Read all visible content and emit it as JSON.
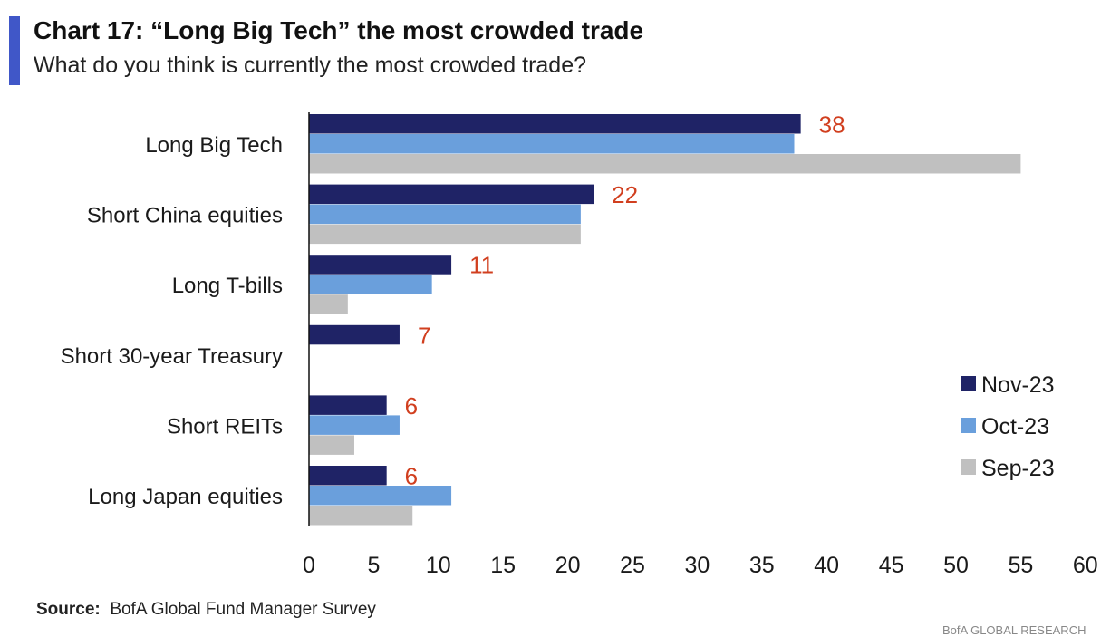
{
  "title": "Chart 17: “Long Big Tech” the most crowded trade",
  "subtitle": "What do you think is currently the most crowded trade?",
  "source_label": "Source:",
  "source_text": "BofA Global Fund Manager Survey",
  "footer_mark": "BofA GLOBAL RESEARCH",
  "colors": {
    "accent": "#4057c8",
    "nov": "#1f2366",
    "oct": "#6a9fdc",
    "sep": "#c0c0c0",
    "value_label": "#d13f1f",
    "axis": "#111111"
  },
  "chart_data": {
    "type": "bar",
    "orientation": "horizontal",
    "title": "Chart 17: “Long Big Tech” the most crowded trade",
    "subtitle": "What do you think is currently the most crowded trade?",
    "categories": [
      "Long Big Tech",
      "Short China equities",
      "Long T-bills",
      "Short 30-year Treasury",
      "Short REITs",
      "Long Japan equities"
    ],
    "series": [
      {
        "name": "Nov-23",
        "values": [
          38,
          22,
          11,
          7,
          6,
          6
        ]
      },
      {
        "name": "Oct-23",
        "values": [
          37.5,
          21,
          9.5,
          0,
          7,
          11
        ]
      },
      {
        "name": "Sep-23",
        "values": [
          55,
          21,
          3,
          0,
          3.5,
          8
        ]
      }
    ],
    "data_labels": [
      "38",
      "22",
      "11",
      "7",
      "6",
      "6"
    ],
    "xlim": [
      0,
      60
    ],
    "xticks": [
      0,
      5,
      10,
      15,
      20,
      25,
      30,
      35,
      40,
      45,
      50,
      55,
      60
    ],
    "xlabel": "",
    "ylabel": "",
    "grid": false,
    "legend": "right"
  }
}
